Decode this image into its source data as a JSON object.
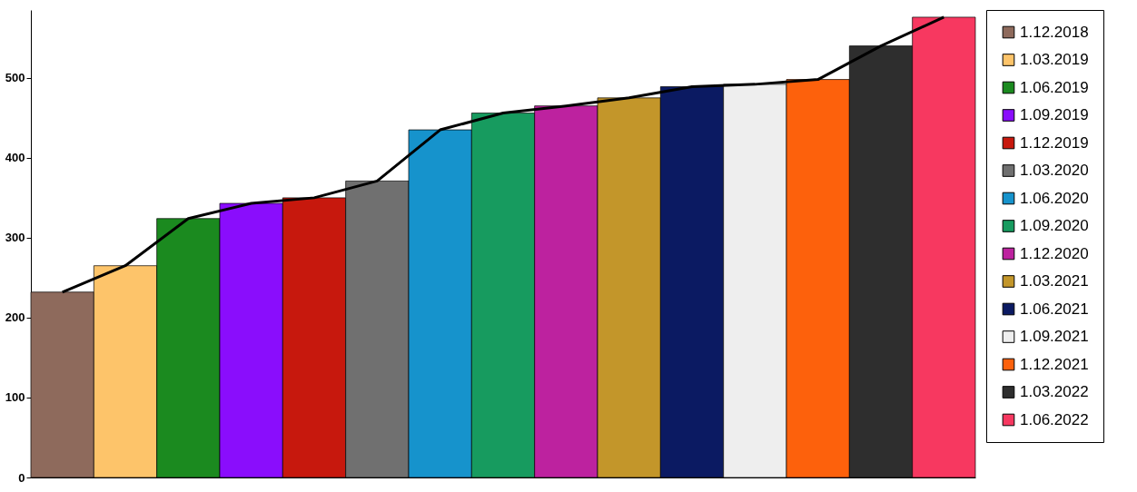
{
  "chart_data": {
    "type": "bar",
    "categories": [
      null,
      null,
      null,
      null,
      null,
      null,
      null,
      null,
      null,
      null,
      null,
      null,
      null,
      null,
      null
    ],
    "series": [
      {
        "name": "1.12.2018",
        "color": "#8e6a5c",
        "values": [
          232,
          null,
          null,
          null,
          null,
          null,
          null,
          null,
          null,
          null,
          null,
          null,
          null,
          null,
          null
        ]
      },
      {
        "name": "1.03.2019",
        "color": "#fdc46a",
        "values": [
          null,
          265,
          null,
          null,
          null,
          null,
          null,
          null,
          null,
          null,
          null,
          null,
          null,
          null,
          null
        ]
      },
      {
        "name": "1.06.2019",
        "color": "#1b8a1f",
        "values": [
          null,
          null,
          324,
          null,
          null,
          null,
          null,
          null,
          null,
          null,
          null,
          null,
          null,
          null,
          null
        ]
      },
      {
        "name": "1.09.2019",
        "color": "#8a0dfc",
        "values": [
          null,
          null,
          null,
          343,
          null,
          null,
          null,
          null,
          null,
          null,
          null,
          null,
          null,
          null,
          null
        ]
      },
      {
        "name": "1.12.2019",
        "color": "#c7180d",
        "values": [
          null,
          null,
          null,
          null,
          350,
          null,
          null,
          null,
          null,
          null,
          null,
          null,
          null,
          null,
          null
        ]
      },
      {
        "name": "1.03.2020",
        "color": "#707070",
        "values": [
          null,
          null,
          null,
          null,
          null,
          371,
          null,
          null,
          null,
          null,
          null,
          null,
          null,
          null,
          null
        ]
      },
      {
        "name": "1.06.2020",
        "color": "#1693cc",
        "values": [
          null,
          null,
          null,
          null,
          null,
          null,
          435,
          null,
          null,
          null,
          null,
          null,
          null,
          null,
          null
        ]
      },
      {
        "name": "1.09.2020",
        "color": "#179b5f",
        "values": [
          null,
          null,
          null,
          null,
          null,
          null,
          null,
          456,
          null,
          null,
          null,
          null,
          null,
          null,
          null
        ]
      },
      {
        "name": "1.12.2020",
        "color": "#bd229f",
        "values": [
          null,
          null,
          null,
          null,
          null,
          null,
          null,
          null,
          465,
          null,
          null,
          null,
          null,
          null,
          null
        ]
      },
      {
        "name": "1.03.2021",
        "color": "#c3962a",
        "values": [
          null,
          null,
          null,
          null,
          null,
          null,
          null,
          null,
          null,
          475,
          null,
          null,
          null,
          null,
          null
        ]
      },
      {
        "name": "1.06.2021",
        "color": "#0b1a62",
        "values": [
          null,
          null,
          null,
          null,
          null,
          null,
          null,
          null,
          null,
          null,
          489,
          null,
          null,
          null,
          null
        ]
      },
      {
        "name": "1.09.2021",
        "color": "#eeeeee",
        "values": [
          null,
          null,
          null,
          null,
          null,
          null,
          null,
          null,
          null,
          null,
          null,
          492,
          null,
          null,
          null
        ]
      },
      {
        "name": "1.12.2021",
        "color": "#fd610c",
        "values": [
          null,
          null,
          null,
          null,
          null,
          null,
          null,
          null,
          null,
          null,
          null,
          null,
          498,
          null,
          null
        ]
      },
      {
        "name": "1.03.2022",
        "color": "#2e2e2e",
        "values": [
          null,
          null,
          null,
          null,
          null,
          null,
          null,
          null,
          null,
          null,
          null,
          null,
          null,
          540,
          null
        ]
      },
      {
        "name": "1.06.2022",
        "color": "#f73860",
        "values": [
          null,
          null,
          null,
          null,
          null,
          null,
          null,
          null,
          null,
          null,
          null,
          null,
          null,
          null,
          576
        ]
      },
      {
        "type": "line",
        "color": "#000000",
        "values": [
          232,
          265,
          324,
          343,
          350,
          371,
          435,
          456,
          465,
          475,
          489,
          492,
          498,
          540,
          576
        ]
      }
    ],
    "ylim": [
      0,
      585
    ],
    "yticks": [
      0,
      100,
      200,
      300,
      400,
      500
    ],
    "legend": "right",
    "tick_labels": "y",
    "marker": "none",
    "line_style": "solid"
  }
}
